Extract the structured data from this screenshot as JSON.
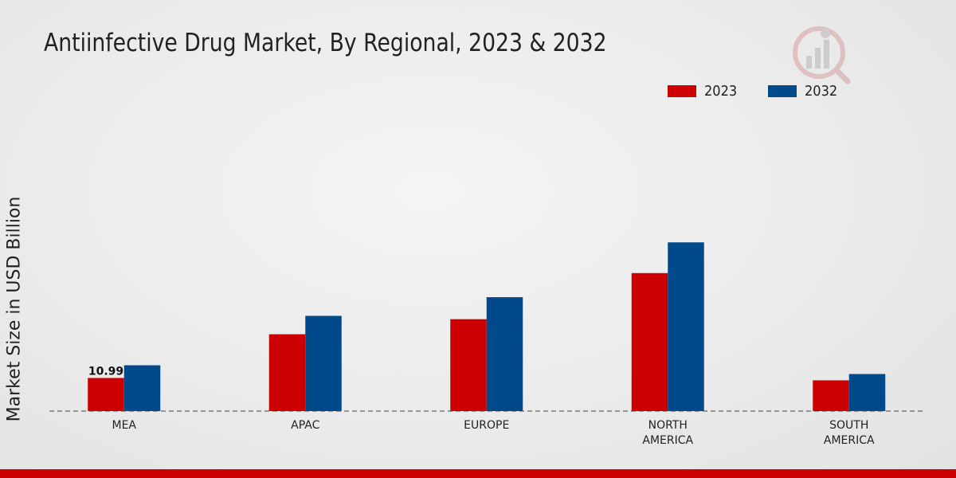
{
  "title": "Antiinfective Drug Market, By Regional, 2023 & 2032",
  "colors": {
    "2023": "#cc0000",
    "2032": "#004a8c",
    "accent": "#cc0000"
  },
  "chart_data": {
    "type": "bar",
    "title": "Antiinfective Drug Market, By Regional, 2023 & 2032",
    "xlabel": "",
    "ylabel": "Market Size in USD Billion",
    "categories": [
      [
        "MEA"
      ],
      [
        "APAC"
      ],
      [
        "EUROPE"
      ],
      [
        "NORTH",
        "AMERICA"
      ],
      [
        "SOUTH",
        "AMERICA"
      ]
    ],
    "series": [
      {
        "name": "2023",
        "color": "#cc0000",
        "values": [
          10.99,
          25.5,
          30.5,
          45.8,
          10.2
        ]
      },
      {
        "name": "2032",
        "color": "#004a8c",
        "values": [
          15.2,
          31.6,
          37.8,
          56.0,
          12.3
        ]
      }
    ],
    "data_labels": [
      {
        "series": 0,
        "index": 0,
        "text": "10.99"
      }
    ],
    "ylim": [
      0,
      110
    ],
    "grid": false,
    "legend": "top-right"
  }
}
